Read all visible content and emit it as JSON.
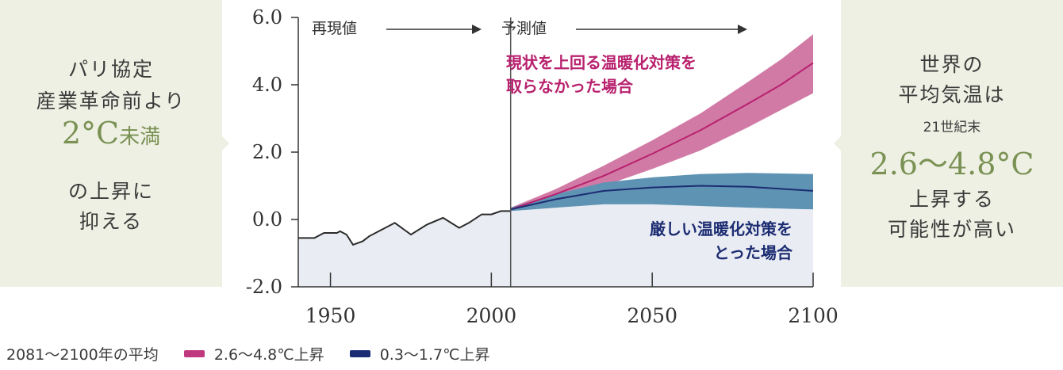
{
  "left_box": {
    "line1": "パリ協定",
    "line2": "産業革命前より",
    "big_value": "2°C",
    "big_suffix": "未満",
    "line4": "の上昇に",
    "line5": "抑える"
  },
  "right_box": {
    "line1": "世界の",
    "line2": "平均気温は",
    "line3": "21世紀末",
    "big_value": "2.6〜4.8°C",
    "line5": "上昇する",
    "line6": "可能性が高い"
  },
  "chart_data": {
    "type": "line",
    "xlim": [
      1940,
      2100
    ],
    "ylim": [
      -2.0,
      6.0
    ],
    "x_ticks": [
      "1950",
      "2000",
      "2050",
      "2100"
    ],
    "y_ticks": [
      "6.0",
      "4.0",
      "2.0",
      "0.0",
      "-2.0"
    ],
    "divider_year": 2006,
    "region_labels": {
      "past": "再現値",
      "future": "予測値"
    },
    "observed": {
      "x": [
        1940,
        1945,
        1948,
        1952,
        1953,
        1955,
        1957,
        1960,
        1962,
        1965,
        1970,
        1975,
        1980,
        1985,
        1990,
        1993,
        1997,
        2000,
        2003,
        2006
      ],
      "y": [
        -0.55,
        -0.55,
        -0.4,
        -0.4,
        -0.35,
        -0.45,
        -0.75,
        -0.65,
        -0.5,
        -0.35,
        -0.1,
        -0.45,
        -0.15,
        0.05,
        -0.25,
        -0.1,
        0.15,
        0.15,
        0.25,
        0.25
      ]
    },
    "series": [
      {
        "label": "現状を上回る温暖化対策を\n取らなかった場合",
        "color": "#b8216e",
        "band_color": "#d17aa5",
        "x": [
          2006,
          2020,
          2035,
          2050,
          2065,
          2080,
          2090,
          2100
        ],
        "y": [
          0.3,
          0.75,
          1.3,
          1.95,
          2.65,
          3.45,
          4.0,
          4.65
        ],
        "band_low": [
          0.25,
          0.6,
          1.0,
          1.5,
          2.05,
          2.75,
          3.25,
          3.75
        ],
        "band_high": [
          0.35,
          0.9,
          1.6,
          2.35,
          3.15,
          4.1,
          4.75,
          5.5
        ]
      },
      {
        "label": "厳しい温暖化対策を\nとった場合",
        "color": "#1c2c72",
        "band_color": "#5e93b3",
        "x": [
          2006,
          2020,
          2035,
          2050,
          2065,
          2080,
          2100
        ],
        "y": [
          0.3,
          0.6,
          0.85,
          0.95,
          1.0,
          0.97,
          0.85
        ],
        "band_low": [
          0.25,
          0.35,
          0.45,
          0.45,
          0.4,
          0.35,
          0.3
        ],
        "band_high": [
          0.35,
          0.75,
          1.1,
          1.25,
          1.35,
          1.38,
          1.35
        ]
      }
    ],
    "legend_title": "2081〜2100年の平均",
    "legend": [
      {
        "label": "2.6〜4.8℃上昇",
        "color": "#c0397e"
      },
      {
        "label": "0.3〜1.7℃上昇",
        "color": "#1c2c72"
      }
    ]
  }
}
